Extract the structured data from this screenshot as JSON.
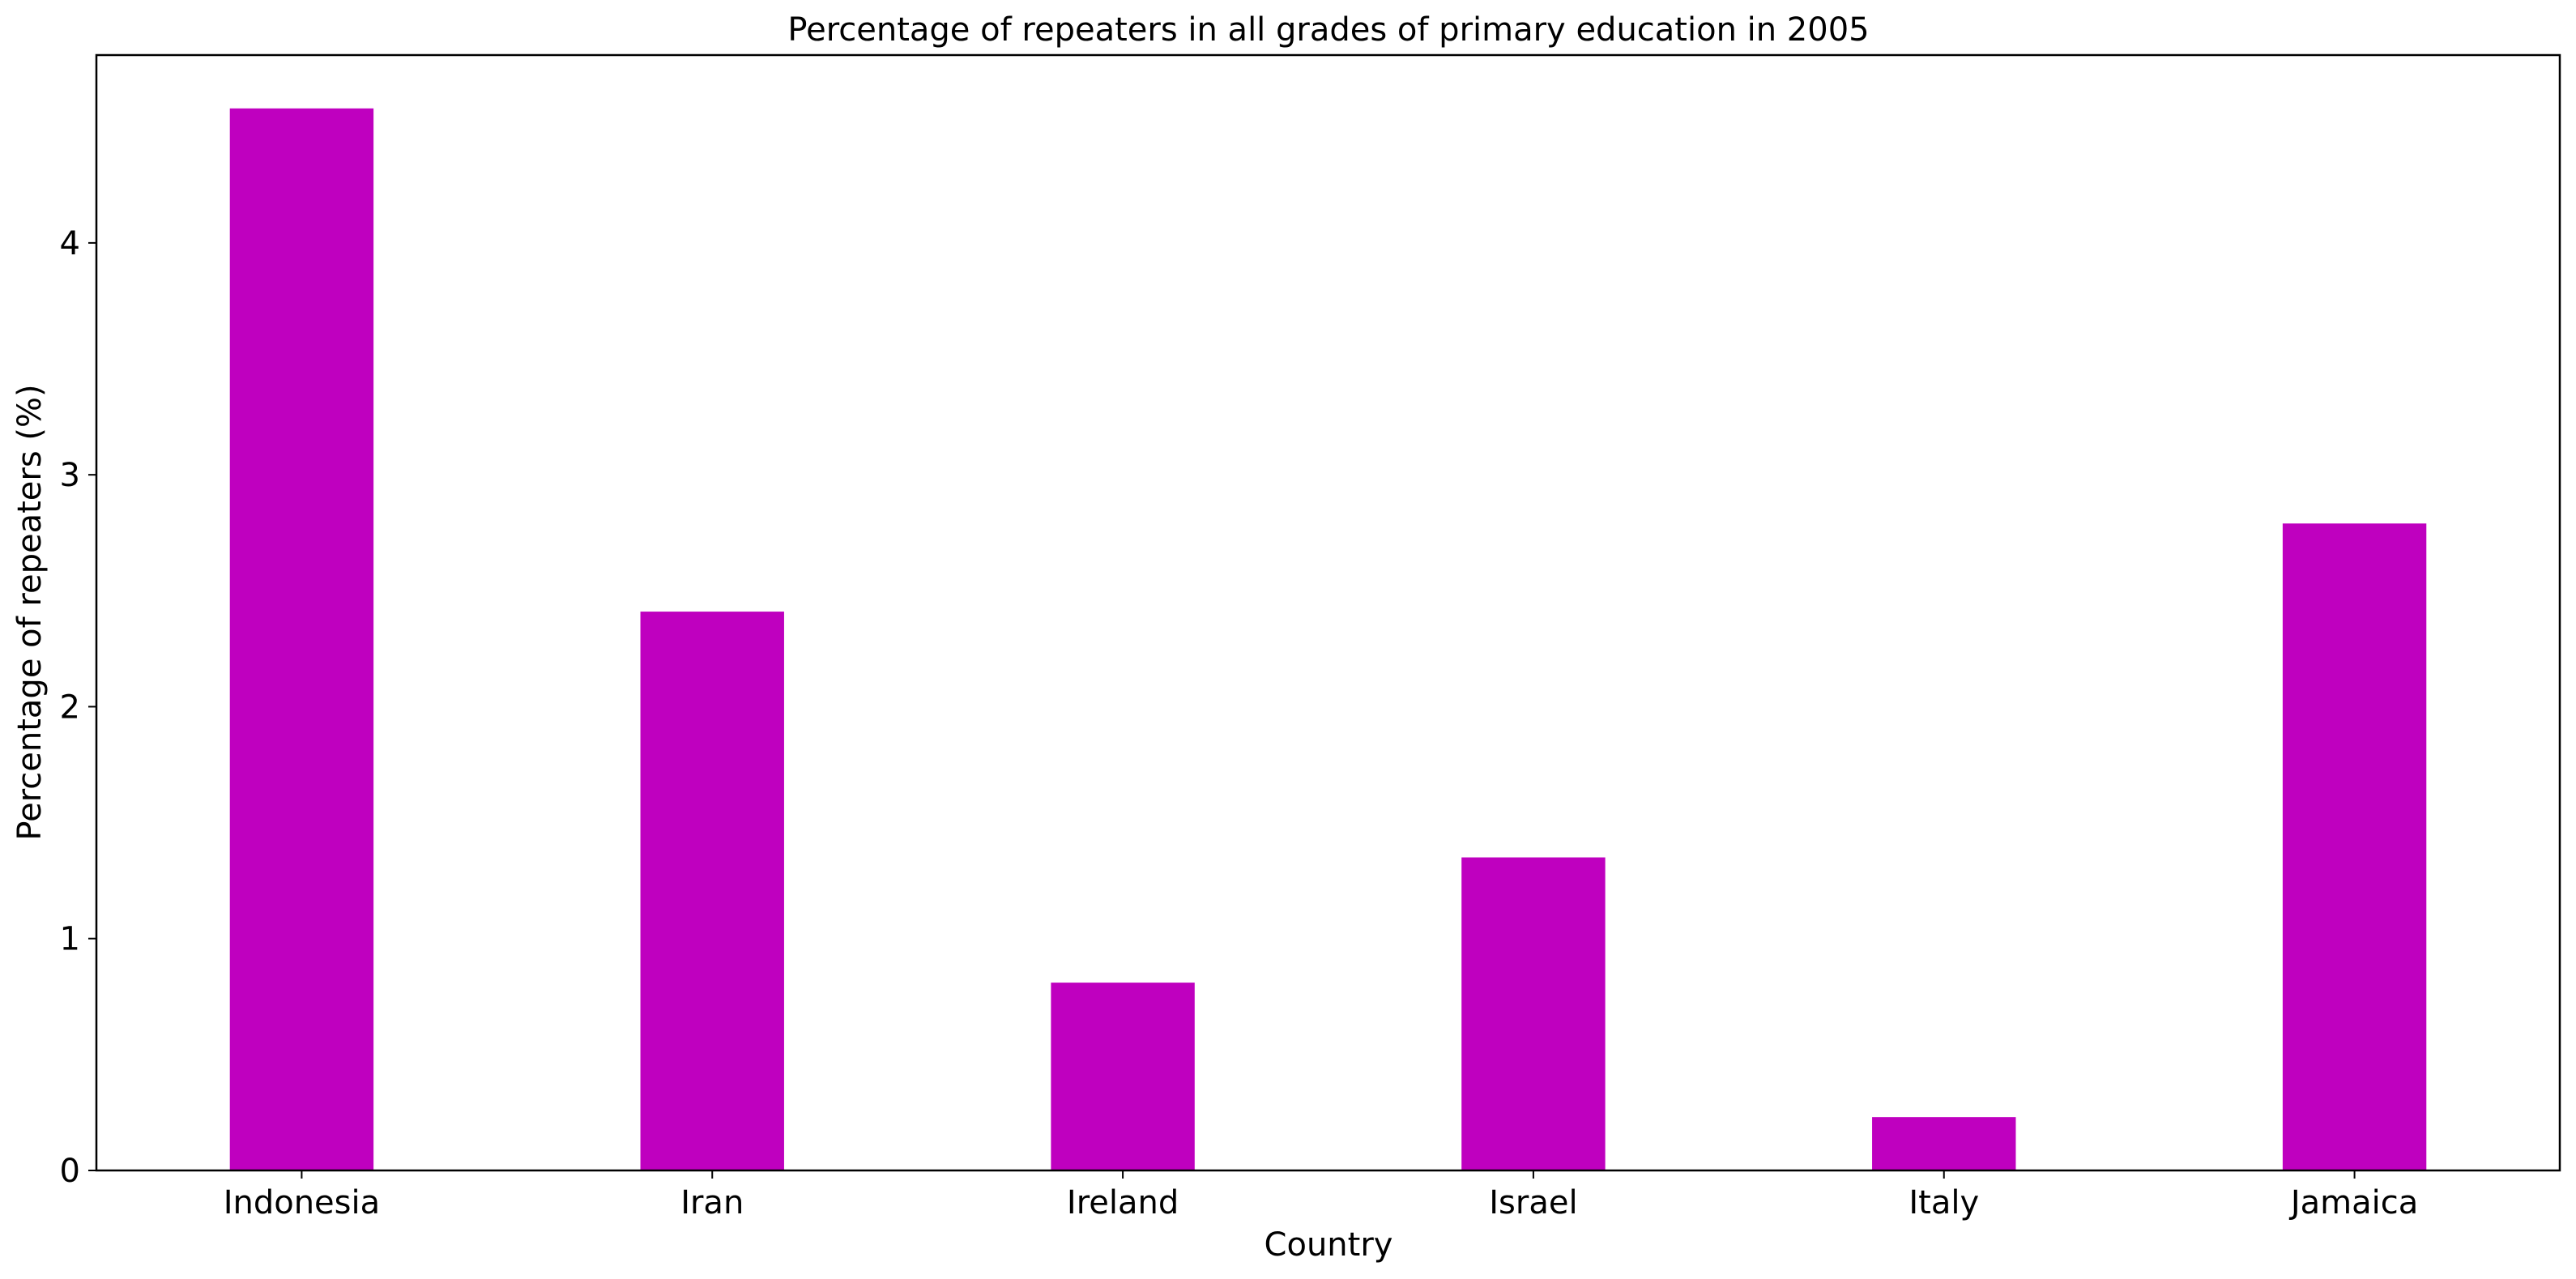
{
  "chart_data": {
    "type": "bar",
    "title": "Percentage of repeaters in all grades of primary education in 2005",
    "xlabel": "Country",
    "ylabel": "Percentage of repeaters (%)",
    "categories": [
      "Indonesia",
      "Iran",
      "Ireland",
      "Israel",
      "Italy",
      "Jamaica"
    ],
    "values": [
      4.58,
      2.41,
      0.81,
      1.35,
      0.23,
      2.79
    ],
    "ylim": [
      0,
      4.81
    ],
    "yticks": [
      0,
      1,
      2,
      3,
      4
    ],
    "grid": false,
    "legend": "none",
    "bar_color": "#bf00bf"
  }
}
